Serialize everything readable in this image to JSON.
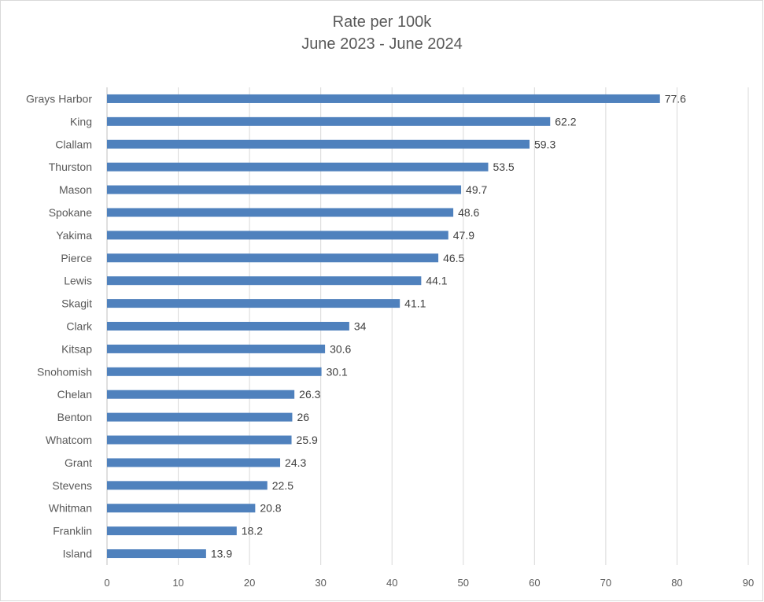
{
  "chart_data": {
    "type": "bar",
    "orientation": "horizontal",
    "title": "Rate per 100k",
    "subtitle": "June 2023 - June 2024",
    "xlabel": "",
    "ylabel": "",
    "xlim": [
      0,
      90
    ],
    "x_ticks": [
      0,
      10,
      20,
      30,
      40,
      50,
      60,
      70,
      80,
      90
    ],
    "grid": true,
    "legend": "none",
    "bar_color": "#4F81BD",
    "categories": [
      "Grays Harbor",
      "King",
      "Clallam",
      "Thurston",
      "Mason",
      "Spokane",
      "Yakima",
      "Pierce",
      "Lewis",
      "Skagit",
      "Clark",
      "Kitsap",
      "Snohomish",
      "Chelan",
      "Benton",
      "Whatcom",
      "Grant",
      "Stevens",
      "Whitman",
      "Franklin",
      "Island"
    ],
    "values": [
      77.6,
      62.2,
      59.3,
      53.5,
      49.7,
      48.6,
      47.9,
      46.5,
      44.1,
      41.1,
      34,
      30.6,
      30.1,
      26.3,
      26,
      25.9,
      24.3,
      22.5,
      20.8,
      18.2,
      13.9
    ]
  }
}
